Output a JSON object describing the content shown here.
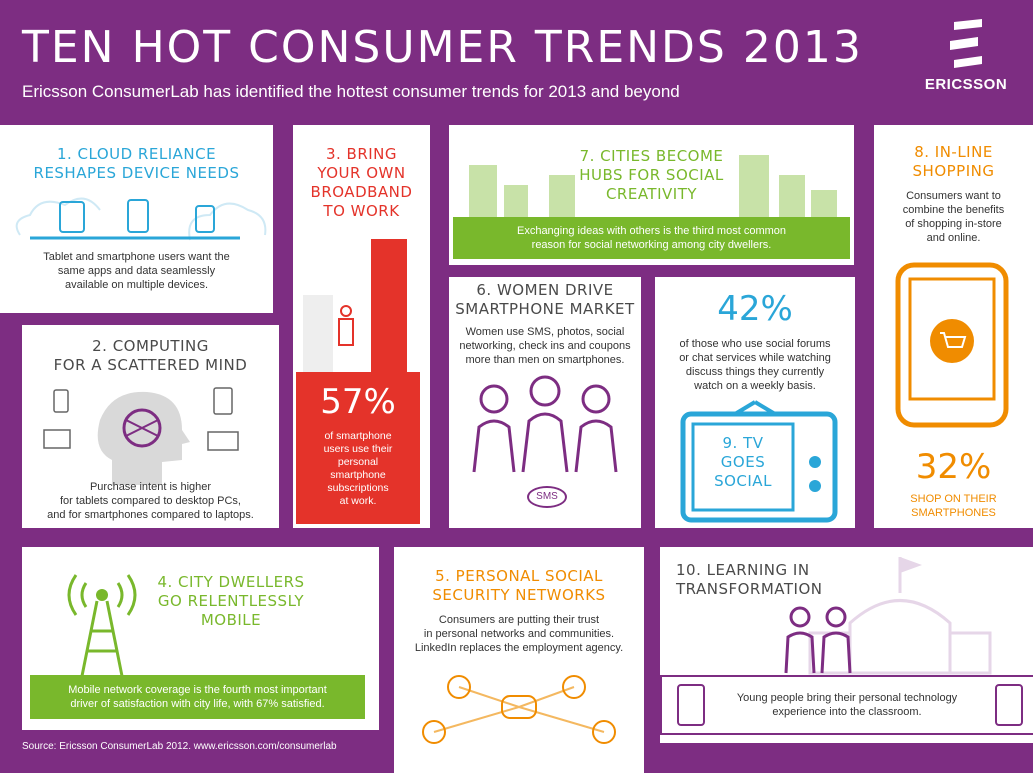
{
  "header": {
    "title": "TEN HOT CONSUMER TRENDS 2013",
    "subtitle": "Ericsson ConsumerLab has identified the hottest consumer trends for 2013 and beyond",
    "logo_text": "ERICSSON"
  },
  "trends": {
    "t1": {
      "title_l1": "1. CLOUD RELIANCE",
      "title_l2": "RESHAPES DEVICE NEEDS",
      "body_l1": "Tablet and smartphone users want the",
      "body_l2": "same apps and data seamlessly",
      "body_l3": "available on multiple devices."
    },
    "t2": {
      "title_l1": "2. COMPUTING",
      "title_l2": "FOR A SCATTERED MIND",
      "body_l1": "Purchase intent is higher",
      "body_l2": "for tablets compared to desktop PCs,",
      "body_l3": "and for smartphones compared to laptops."
    },
    "t3": {
      "title_l1": "3. BRING",
      "title_l2": "YOUR OWN",
      "title_l3": "BROADBAND",
      "title_l4": "TO WORK",
      "stat": "57%",
      "stat_l1": "of smartphone",
      "stat_l2": "users use their",
      "stat_l3": "personal",
      "stat_l4": "smartphone",
      "stat_l5": "subscriptions",
      "stat_l6": "at work."
    },
    "t4": {
      "title_l1": "4. CITY DWELLERS",
      "title_l2": "GO RELENTLESSLY",
      "title_l3": "MOBILE",
      "body_l1": "Mobile network coverage is the fourth most important",
      "body_l2": "driver of satisfaction with city life, with 67% satisfied."
    },
    "t5": {
      "title_l1": "5. PERSONAL SOCIAL",
      "title_l2": "SECURITY NETWORKS",
      "body_l1": "Consumers are putting their trust",
      "body_l2": "in personal networks and communities.",
      "body_l3": "LinkedIn replaces the employment agency."
    },
    "t6": {
      "title_l1": "6. WOMEN DRIVE",
      "title_l2": "SMARTPHONE MARKET",
      "body_l1": "Women use SMS, photos, social",
      "body_l2": "networking, check ins and coupons",
      "body_l3": "more than men on smartphones.",
      "sms_label": "SMS"
    },
    "t7": {
      "title_l1": "7. CITIES BECOME",
      "title_l2": "HUBS FOR SOCIAL",
      "title_l3": "CREATIVITY",
      "body_l1": "Exchanging ideas with others is the third most common",
      "body_l2": "reason for social networking among city dwellers."
    },
    "t8": {
      "title_l1": "8. IN-LINE",
      "title_l2": "SHOPPING",
      "body_l1": "Consumers want to",
      "body_l2": "combine the benefits",
      "body_l3": "of shopping in-store",
      "body_l4": "and online.",
      "stat": "32%",
      "stat_l1": "SHOP ON THEIR",
      "stat_l2": "SMARTPHONES"
    },
    "t9": {
      "stat": "42%",
      "body_l1": "of those who use social forums",
      "body_l2": "or chat services while watching",
      "body_l3": "discuss things they currently",
      "body_l4": "watch on a weekly basis.",
      "tv_l1": "9. TV",
      "tv_l2": "GOES",
      "tv_l3": "SOCIAL"
    },
    "t10": {
      "title_l1": "10. LEARNING IN",
      "title_l2": "TRANSFORMATION",
      "body_l1": "Young people bring their personal technology",
      "body_l2": "experience into the classroom."
    }
  },
  "footer": {
    "source": "Source: Ericsson ConsumerLab 2012. www.ericsson.com/consumerlab"
  },
  "colors": {
    "purple": "#7d2d82",
    "blue": "#2aa6d8",
    "red": "#e4332a",
    "green": "#79b82c",
    "orange": "#f08c00"
  }
}
